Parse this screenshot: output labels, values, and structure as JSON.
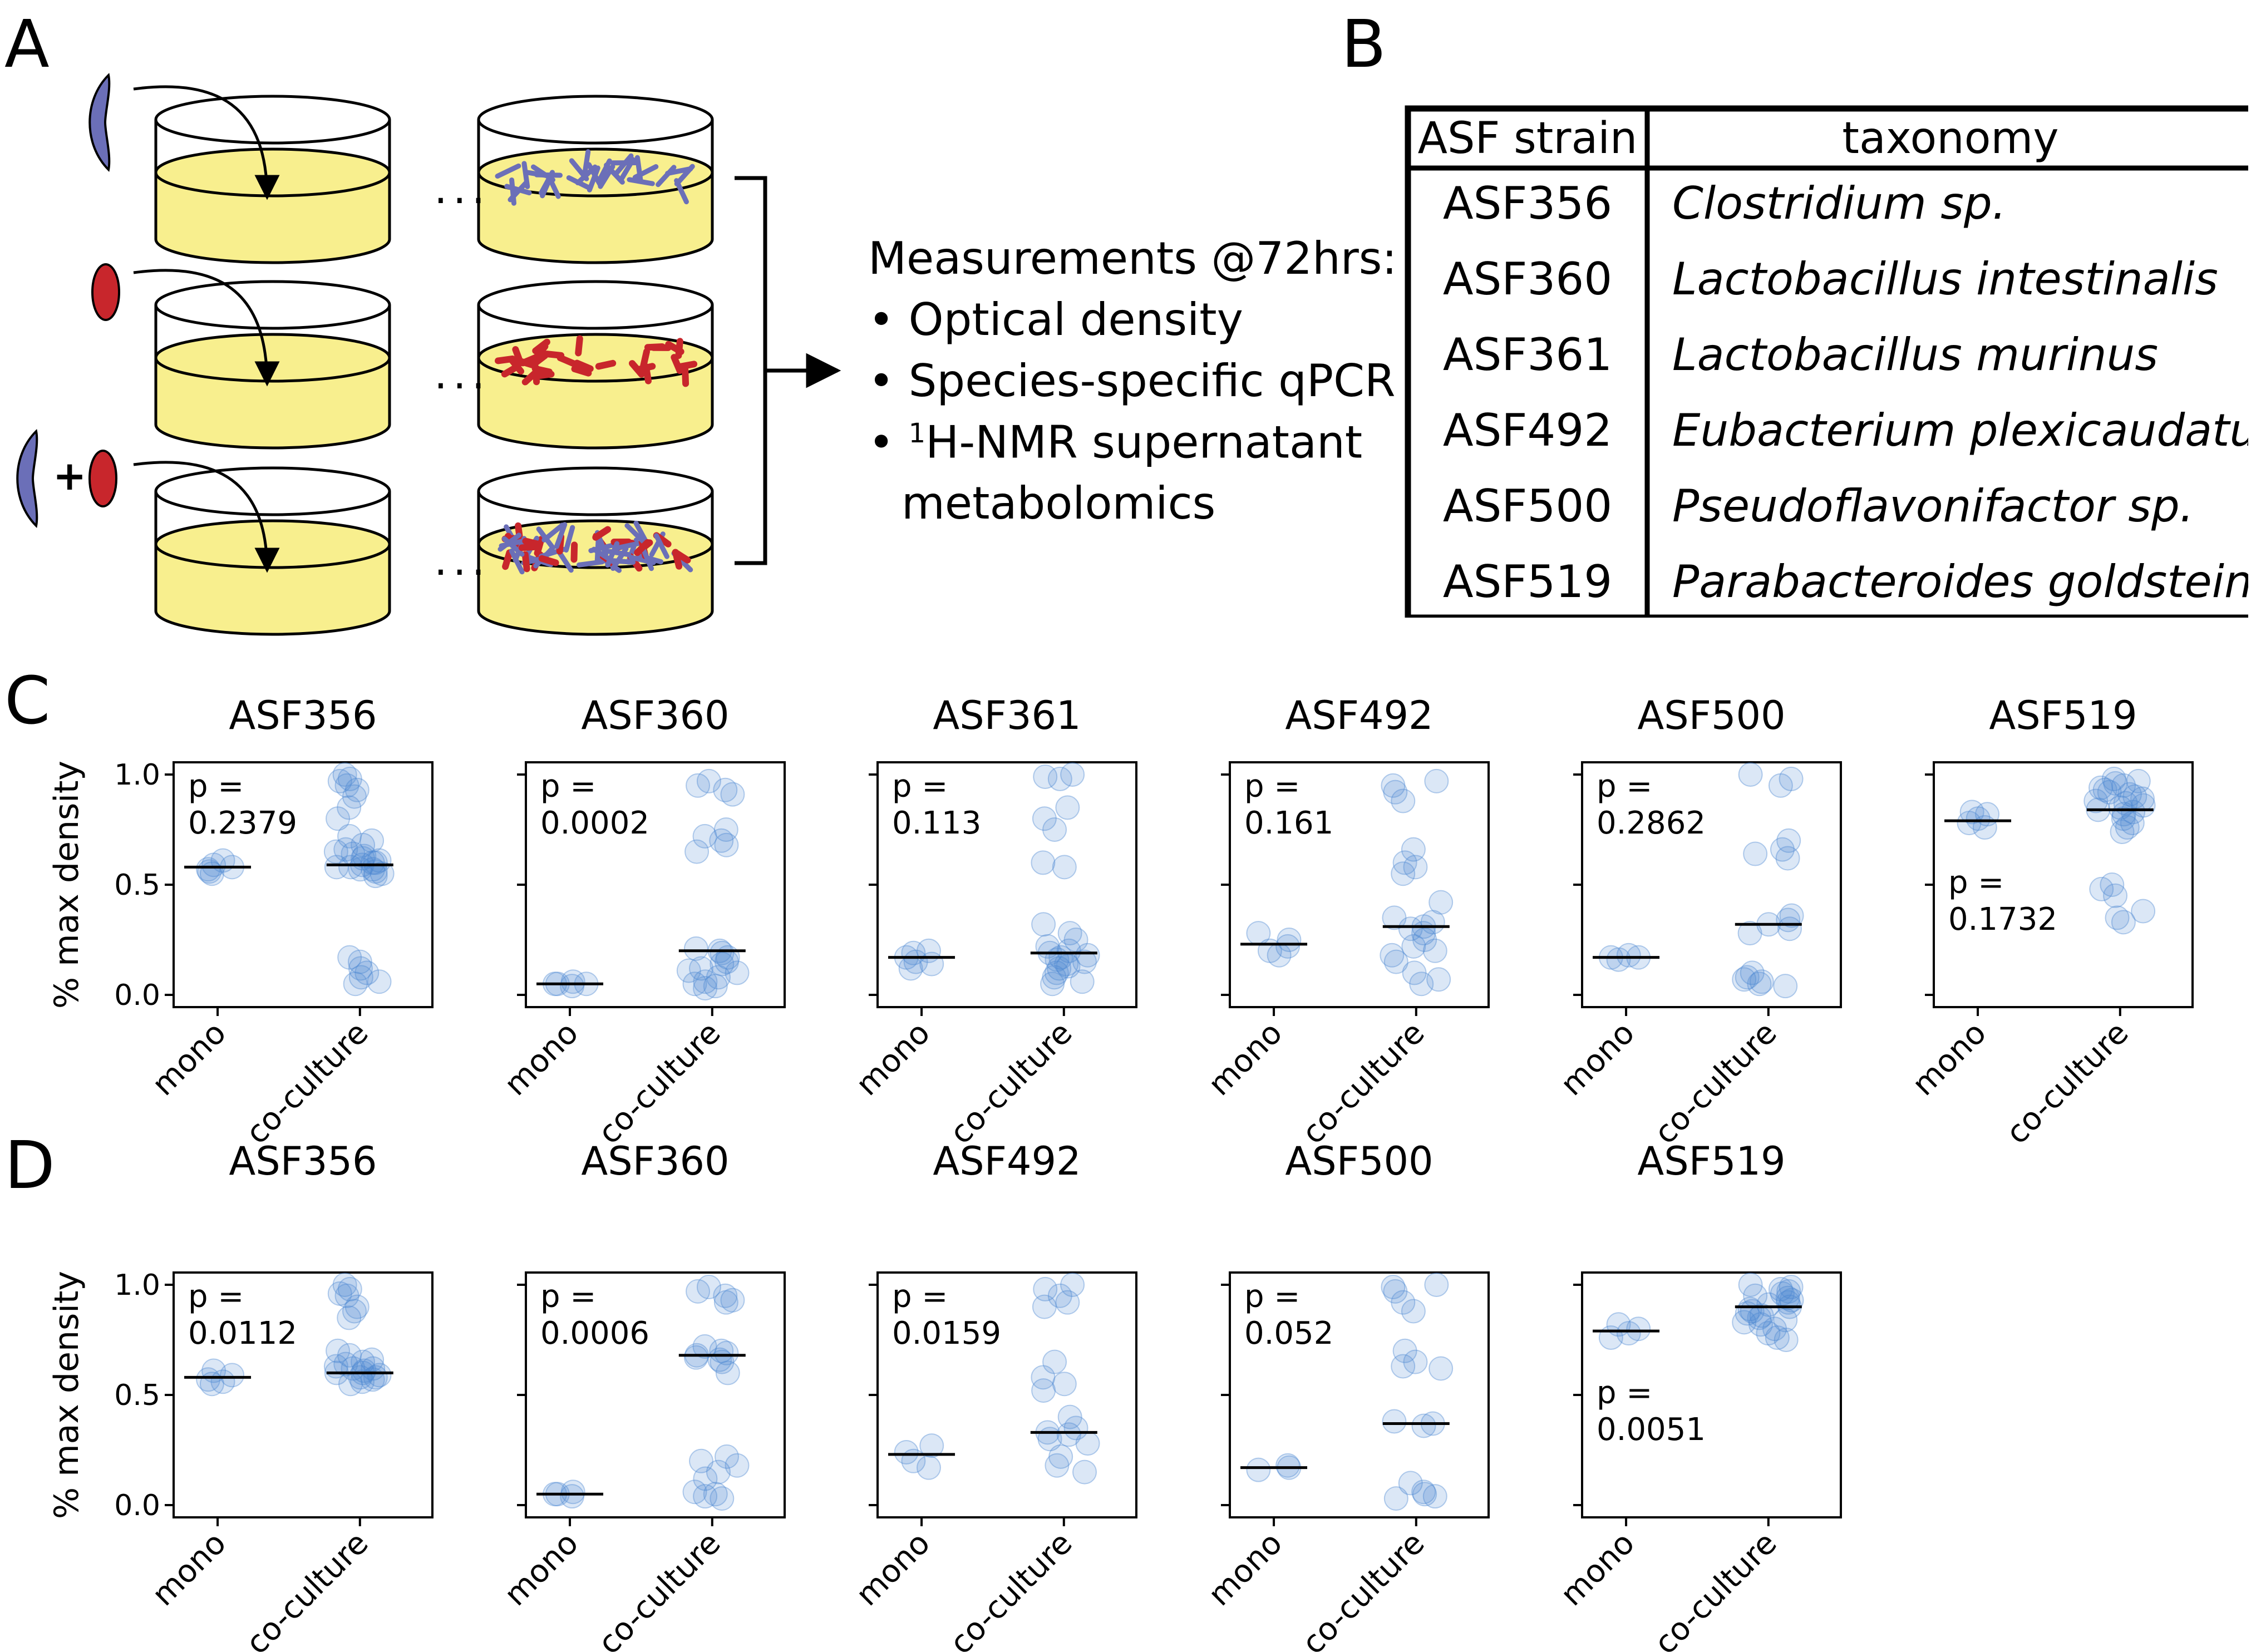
{
  "panel_labels": [
    "A",
    "B",
    "C",
    "D"
  ],
  "measurements": {
    "title": "Measurements @72hrs:",
    "items": [
      {
        "pre": "Optical density",
        "sup": "",
        "post": ""
      },
      {
        "pre": "Species-specific qPCR",
        "sup": "",
        "post": ""
      },
      {
        "pre": "",
        "sup": "1",
        "post": "H-NMR supernatant"
      }
    ],
    "continuation": "metabolomics",
    "plus_sign": "+",
    "ellipsis": "..."
  },
  "table": {
    "headers": [
      "ASF strain",
      "taxonomy"
    ],
    "rows": [
      [
        "ASF356",
        "Clostridium sp."
      ],
      [
        "ASF360",
        "Lactobacillus intestinalis"
      ],
      [
        "ASF361",
        "Lactobacillus murinus"
      ],
      [
        "ASF492",
        "Eubacterium plexicaudatum"
      ],
      [
        "ASF500",
        "Pseudoflavonifactor sp."
      ],
      [
        "ASF519",
        "Parabacteroides goldsteinii"
      ]
    ]
  },
  "colors": {
    "medium": "#f8ef8e",
    "species_blue": "#6b6fb8",
    "species_red": "#c8262c",
    "point_fill": "#4a86d1",
    "median_line": "#000000"
  },
  "chart_data": [
    {
      "type": "scatter",
      "panel": "C",
      "ylabel": "% max density",
      "ylim": [
        0,
        1.0
      ],
      "yticks": [
        "0.0",
        "0.5",
        "1.0"
      ],
      "categories": [
        "mono",
        "co-culture"
      ],
      "subplots": [
        {
          "title": "ASF356",
          "p_label": "p =",
          "p_value": "0.2379",
          "p_position": "top-left",
          "mono": {
            "median": 0.58,
            "points": [
              0.55,
              0.57,
              0.58,
              0.59,
              0.61,
              0.56
            ]
          },
          "coculture": {
            "median": 0.59,
            "points": [
              1.0,
              0.98,
              0.97,
              0.95,
              0.93,
              0.9,
              0.85,
              0.8,
              0.72,
              0.7,
              0.68,
              0.66,
              0.65,
              0.64,
              0.63,
              0.62,
              0.61,
              0.6,
              0.6,
              0.59,
              0.58,
              0.58,
              0.57,
              0.57,
              0.56,
              0.55,
              0.54,
              0.15,
              0.12,
              0.1,
              0.08,
              0.06,
              0.05,
              0.17
            ]
          }
        },
        {
          "title": "ASF360",
          "p_label": "p =",
          "p_value": "0.0002",
          "p_position": "top-left",
          "mono": {
            "median": 0.05,
            "points": [
              0.04,
              0.05,
              0.06,
              0.05,
              0.05
            ]
          },
          "coculture": {
            "median": 0.2,
            "points": [
              0.97,
              0.95,
              0.93,
              0.91,
              0.75,
              0.72,
              0.7,
              0.68,
              0.65,
              0.21,
              0.2,
              0.19,
              0.17,
              0.15,
              0.12,
              0.1,
              0.08,
              0.06,
              0.05,
              0.04,
              0.03,
              0.14,
              0.11
            ]
          }
        },
        {
          "title": "ASF361",
          "p_label": "p =",
          "p_value": "0.113",
          "p_position": "top-left",
          "mono": {
            "median": 0.17,
            "points": [
              0.14,
              0.17,
              0.19,
              0.2,
              0.15,
              0.12
            ]
          },
          "coculture": {
            "median": 0.19,
            "points": [
              1.0,
              0.99,
              0.98,
              0.85,
              0.8,
              0.75,
              0.6,
              0.58,
              0.32,
              0.28,
              0.25,
              0.22,
              0.2,
              0.19,
              0.18,
              0.17,
              0.16,
              0.15,
              0.14,
              0.13,
              0.12,
              0.1,
              0.08,
              0.06,
              0.05
            ]
          }
        },
        {
          "title": "ASF492",
          "p_label": "p =",
          "p_value": "0.161",
          "p_position": "top-left",
          "mono": {
            "median": 0.23,
            "points": [
              0.28,
              0.25,
              0.22,
              0.2,
              0.18
            ]
          },
          "coculture": {
            "median": 0.31,
            "points": [
              0.97,
              0.95,
              0.92,
              0.88,
              0.66,
              0.6,
              0.58,
              0.55,
              0.42,
              0.35,
              0.33,
              0.31,
              0.3,
              0.28,
              0.25,
              0.2,
              0.15,
              0.1,
              0.07,
              0.05,
              0.22,
              0.18
            ]
          }
        },
        {
          "title": "ASF500",
          "p_label": "p =",
          "p_value": "0.2862",
          "p_position": "top-left",
          "mono": {
            "median": 0.17,
            "points": [
              0.16,
              0.17,
              0.18,
              0.17
            ]
          },
          "coculture": {
            "median": 0.32,
            "points": [
              1.0,
              0.98,
              0.95,
              0.7,
              0.66,
              0.64,
              0.62,
              0.36,
              0.34,
              0.32,
              0.3,
              0.28,
              0.1,
              0.08,
              0.06,
              0.05,
              0.04,
              0.07
            ]
          }
        },
        {
          "title": "ASF519",
          "p_label": "p =",
          "p_value": "0.1732",
          "p_position": "mid-left",
          "mono": {
            "median": 0.79,
            "points": [
              0.8,
              0.82,
              0.78,
              0.76,
              0.83
            ]
          },
          "coculture": {
            "median": 0.84,
            "points": [
              0.98,
              0.97,
              0.96,
              0.95,
              0.94,
              0.93,
              0.92,
              0.91,
              0.9,
              0.89,
              0.88,
              0.87,
              0.86,
              0.85,
              0.84,
              0.83,
              0.82,
              0.8,
              0.78,
              0.76,
              0.74,
              0.5,
              0.48,
              0.45,
              0.38,
              0.35,
              0.33
            ]
          }
        }
      ]
    },
    {
      "type": "scatter",
      "panel": "D",
      "ylabel": "% max density",
      "ylim": [
        0,
        1.0
      ],
      "yticks": [
        "0.0",
        "0.5",
        "1.0"
      ],
      "categories": [
        "mono",
        "co-culture"
      ],
      "subplots": [
        {
          "title": "ASF356",
          "p_label": "p =",
          "p_value": "0.0112",
          "p_position": "top-left",
          "mono": {
            "median": 0.58,
            "points": [
              0.55,
              0.57,
              0.59,
              0.61,
              0.56
            ]
          },
          "coculture": {
            "median": 0.6,
            "points": [
              1.0,
              0.98,
              0.96,
              0.95,
              0.9,
              0.88,
              0.85,
              0.7,
              0.68,
              0.66,
              0.65,
              0.64,
              0.63,
              0.62,
              0.61,
              0.6,
              0.59,
              0.58,
              0.57,
              0.56,
              0.55,
              0.6,
              0.62,
              0.58
            ]
          }
        },
        {
          "title": "ASF360",
          "p_label": "p =",
          "p_value": "0.0006",
          "p_position": "top-left",
          "mono": {
            "median": 0.05,
            "points": [
              0.04,
              0.05,
              0.06,
              0.05
            ]
          },
          "coculture": {
            "median": 0.68,
            "points": [
              0.99,
              0.97,
              0.95,
              0.93,
              0.92,
              0.72,
              0.7,
              0.69,
              0.68,
              0.67,
              0.66,
              0.65,
              0.6,
              0.22,
              0.2,
              0.18,
              0.15,
              0.12,
              0.06,
              0.05,
              0.04,
              0.03
            ]
          }
        },
        {
          "title": "ASF492",
          "p_label": "p =",
          "p_value": "0.0159",
          "p_position": "top-left",
          "mono": {
            "median": 0.23,
            "points": [
              0.27,
              0.24,
              0.2,
              0.17
            ]
          },
          "coculture": {
            "median": 0.33,
            "points": [
              1.0,
              0.98,
              0.95,
              0.92,
              0.9,
              0.65,
              0.58,
              0.55,
              0.52,
              0.4,
              0.35,
              0.33,
              0.32,
              0.3,
              0.28,
              0.22,
              0.18,
              0.15
            ]
          }
        },
        {
          "title": "ASF500",
          "p_label": "p =",
          "p_value": "0.052",
          "p_position": "top-left",
          "mono": {
            "median": 0.17,
            "points": [
              0.16,
              0.17,
              0.18
            ]
          },
          "coculture": {
            "median": 0.37,
            "points": [
              1.0,
              0.99,
              0.97,
              0.92,
              0.88,
              0.7,
              0.65,
              0.63,
              0.62,
              0.38,
              0.37,
              0.36,
              0.1,
              0.06,
              0.05,
              0.04,
              0.03
            ]
          }
        },
        {
          "title": "ASF519",
          "p_label": "p =",
          "p_value": "0.0051",
          "p_position": "mid-left",
          "mono": {
            "median": 0.79,
            "points": [
              0.82,
              0.8,
              0.78,
              0.76
            ]
          },
          "coculture": {
            "median": 0.9,
            "points": [
              1.0,
              0.99,
              0.98,
              0.97,
              0.96,
              0.95,
              0.94,
              0.93,
              0.92,
              0.91,
              0.9,
              0.89,
              0.88,
              0.87,
              0.86,
              0.85,
              0.84,
              0.83,
              0.82,
              0.8,
              0.78,
              0.76,
              0.75
            ]
          }
        }
      ]
    }
  ]
}
